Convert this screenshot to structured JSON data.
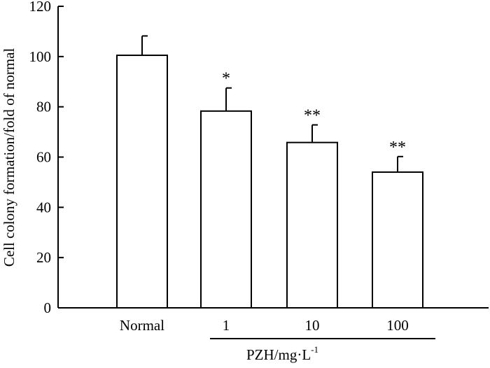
{
  "chart_data": {
    "type": "bar",
    "title": "",
    "ylabel": "Cell colony formation/fold of normal",
    "xlabel": {
      "prefix": "PZH/mg·L",
      "superscript": "-1"
    },
    "ylim": [
      0,
      120
    ],
    "yticks": [
      0,
      20,
      40,
      60,
      80,
      100,
      120
    ],
    "categories": [
      "Normal",
      "1",
      "10",
      "100"
    ],
    "values": [
      100.5,
      78.3,
      65.8,
      54.0
    ],
    "errors": [
      7.7,
      9.2,
      7.0,
      6.2
    ],
    "significance": [
      "",
      "*",
      "**",
      "**"
    ],
    "bar_fill": "#ffffff",
    "bar_stroke": "#000000"
  }
}
